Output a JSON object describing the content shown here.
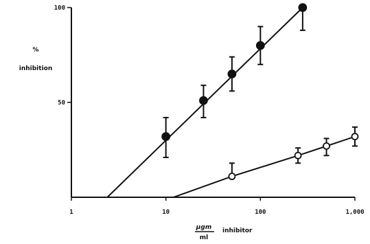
{
  "chart_data": {
    "type": "scatter",
    "x_scale": "log",
    "xlim": [
      1,
      1000
    ],
    "ylim": [
      0,
      100
    ],
    "x_ticks": [
      1,
      10,
      100,
      1000
    ],
    "x_tick_labels": [
      "1",
      "10",
      "100",
      "1,000"
    ],
    "y_ticks": [
      50,
      100
    ],
    "y_tick_labels": [
      "50",
      "100"
    ],
    "ylabel_lines": [
      "%",
      "inhibition"
    ],
    "xlabel": {
      "unit_numerator": "μgm",
      "unit_denominator": "ml",
      "text": "inhibitor"
    },
    "grid": false,
    "legend": "none",
    "series": [
      {
        "marker": "filled-circle",
        "color": "#111111",
        "points": [
          {
            "x": 10,
            "y": 32,
            "err_low": 11,
            "err_high": 10
          },
          {
            "x": 25,
            "y": 51,
            "err_low": 9,
            "err_high": 8
          },
          {
            "x": 50,
            "y": 65,
            "err_low": 9,
            "err_high": 9
          },
          {
            "x": 100,
            "y": 80,
            "err_low": 10,
            "err_high": 10
          },
          {
            "x": 280,
            "y": 100,
            "err_low": 12,
            "err_high": 0
          }
        ],
        "fit_line": [
          [
            2.4,
            0
          ],
          [
            280,
            100
          ]
        ]
      },
      {
        "marker": "open-circle",
        "color": "#111111",
        "points": [
          {
            "x": 50,
            "y": 11,
            "err_low": 0,
            "err_high": 7
          },
          {
            "x": 250,
            "y": 22,
            "err_low": 4,
            "err_high": 4
          },
          {
            "x": 500,
            "y": 27,
            "err_low": 5,
            "err_high": 4
          },
          {
            "x": 1000,
            "y": 32,
            "err_low": 5,
            "err_high": 5
          }
        ],
        "fit_line": [
          [
            12,
            0
          ],
          [
            50,
            11
          ],
          [
            250,
            22
          ],
          [
            500,
            27
          ],
          [
            1000,
            32
          ]
        ]
      }
    ]
  }
}
